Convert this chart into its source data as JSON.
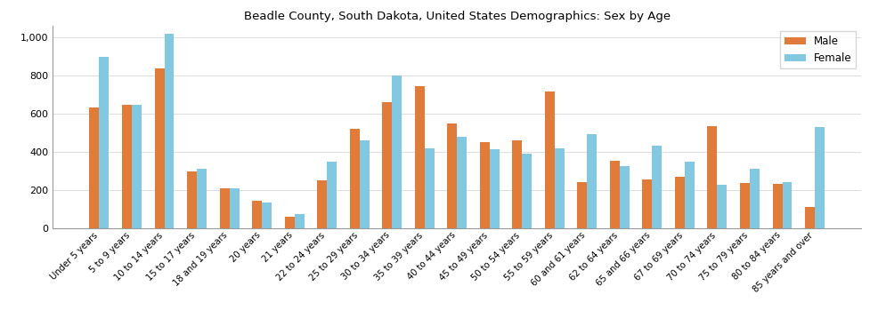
{
  "title": "Beadle County, South Dakota, United States Demographics: Sex by Age",
  "categories": [
    "Under 5 years",
    "5 to 9 years",
    "10 to 14 years",
    "15 to 17 years",
    "18 and 19 years",
    "20 years",
    "21 years",
    "22 to 24 years",
    "25 to 29 years",
    "30 to 34 years",
    "35 to 39 years",
    "40 to 44 years",
    "45 to 49 years",
    "50 to 54 years",
    "55 to 59 years",
    "60 and 61 years",
    "62 to 64 years",
    "65 and 66 years",
    "67 to 69 years",
    "70 to 74 years",
    "75 to 79 years",
    "80 to 84 years",
    "85 years and over"
  ],
  "male": [
    635,
    645,
    838,
    300,
    207,
    143,
    62,
    253,
    520,
    660,
    743,
    550,
    450,
    460,
    718,
    240,
    352,
    257,
    268,
    537,
    238,
    233,
    113
  ],
  "female": [
    900,
    648,
    1020,
    310,
    210,
    133,
    72,
    347,
    462,
    800,
    420,
    478,
    415,
    390,
    420,
    495,
    327,
    435,
    347,
    230,
    310,
    240,
    530
  ],
  "male_color": "#e07b3a",
  "female_color": "#82c8e0",
  "ylim": [
    0,
    1060
  ],
  "yticks": [
    0,
    200,
    400,
    600,
    800,
    1000
  ],
  "ytick_labels": [
    "0",
    "200",
    "400",
    "600",
    "800",
    "1,000"
  ],
  "bar_width": 0.3,
  "figsize": [
    9.87,
    3.67
  ],
  "dpi": 100
}
